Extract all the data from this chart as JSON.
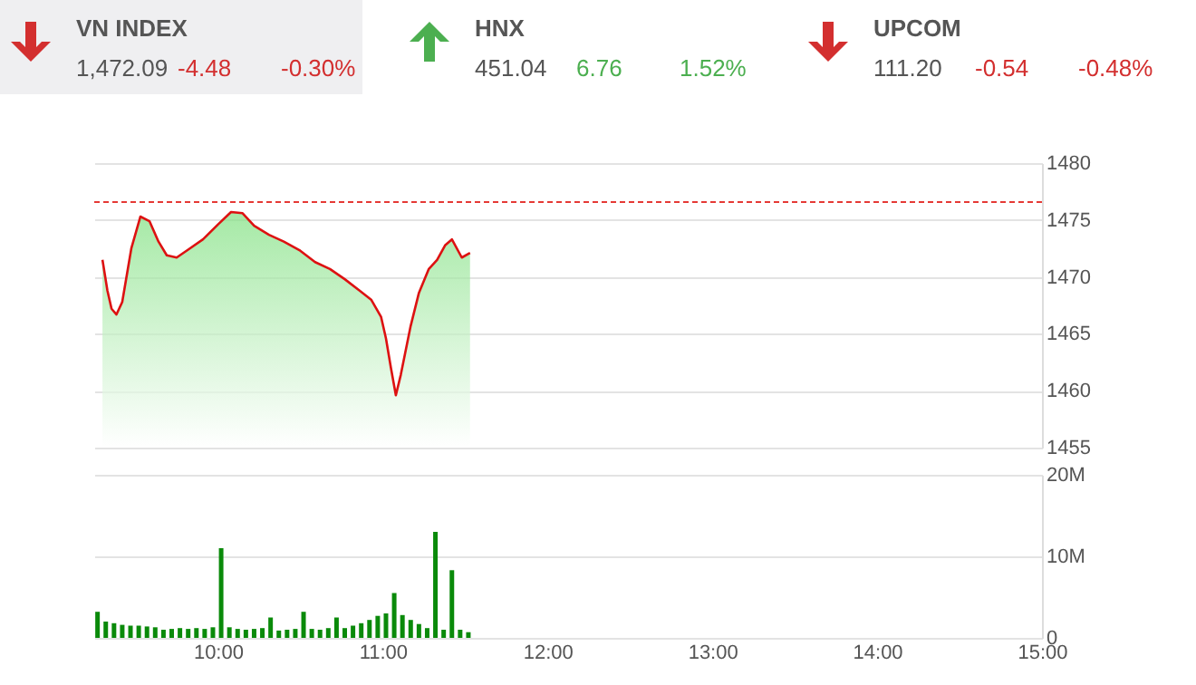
{
  "chart_data": [
    {
      "type": "other",
      "title": "VN INDEX",
      "annotations": [
        "1,472.09",
        "-4.48",
        "-0.30%"
      ],
      "color": "#d32f2f"
    },
    {
      "type": "other",
      "title": "HNX",
      "annotations": [
        "451.04",
        "6.76",
        "1.52%"
      ],
      "color": "#4caf50"
    },
    {
      "type": "other",
      "title": "UPCOM",
      "annotations": [
        "111.20",
        "-0.54",
        "-0.48%"
      ],
      "color": "#d32f2f"
    },
    {
      "type": "area",
      "xlim": [
        9.25,
        15
      ],
      "ylim": [
        1455,
        1480
      ],
      "yticks": [
        1455,
        1460,
        1465,
        1470,
        1475,
        1480
      ],
      "tick_labels": "y",
      "grid": "y",
      "ref_lines": [
        {
          "axis": "y",
          "value": 1476.57,
          "color": "#e53935",
          "line_style": "dashed"
        }
      ],
      "x": [
        9.3,
        9.33,
        9.355,
        9.385,
        9.42,
        9.475,
        9.53,
        9.585,
        9.64,
        9.69,
        9.75,
        9.82,
        9.91,
        10.0,
        10.08,
        10.15,
        10.22,
        10.31,
        10.4,
        10.5,
        10.59,
        10.68,
        10.77,
        10.86,
        10.93,
        10.99,
        11.02,
        11.05,
        11.08,
        11.11,
        11.17,
        11.22,
        11.28,
        11.33,
        11.38,
        11.42,
        11.48,
        11.53
      ],
      "series": [
        {
          "color": "#dd1111",
          "values": [
            1471.5,
            1468.8,
            1467.2,
            1466.7,
            1467.8,
            1472.5,
            1475.3,
            1474.9,
            1473.1,
            1471.9,
            1471.7,
            1472.4,
            1473.3,
            1474.6,
            1475.7,
            1475.6,
            1474.5,
            1473.7,
            1473.1,
            1472.3,
            1471.3,
            1470.7,
            1469.8,
            1468.8,
            1468.0,
            1466.5,
            1464.6,
            1462.0,
            1459.6,
            1461.4,
            1465.7,
            1468.6,
            1470.7,
            1471.5,
            1472.8,
            1473.3,
            1471.7,
            1472.1
          ]
        }
      ]
    },
    {
      "type": "bar",
      "xlim": [
        9.25,
        15
      ],
      "xticks": [
        {
          "value": 10,
          "label": "10:00"
        },
        {
          "value": 11,
          "label": "11:00"
        },
        {
          "value": 12,
          "label": "12:00"
        },
        {
          "value": 13,
          "label": "13:00"
        },
        {
          "value": 14,
          "label": "14:00"
        },
        {
          "value": 15,
          "label": "15:00"
        }
      ],
      "ylim": [
        0,
        20
      ],
      "yticks": [
        0,
        {
          "value": 10,
          "label": "10M"
        },
        {
          "value": 20,
          "label": "20M"
        }
      ],
      "grid": "y",
      "x": [
        9.27,
        9.32,
        9.37,
        9.42,
        9.47,
        9.52,
        9.57,
        9.62,
        9.67,
        9.72,
        9.77,
        9.82,
        9.87,
        9.92,
        9.97,
        10.02,
        10.07,
        10.12,
        10.17,
        10.22,
        10.27,
        10.32,
        10.37,
        10.42,
        10.47,
        10.52,
        10.57,
        10.62,
        10.67,
        10.72,
        10.77,
        10.82,
        10.87,
        10.92,
        10.97,
        11.02,
        11.07,
        11.12,
        11.17,
        11.22,
        11.27,
        11.32,
        11.37,
        11.42,
        11.47,
        11.52
      ],
      "series": [
        {
          "color": "#0a8a0a",
          "values": [
            3.2,
            2.0,
            1.8,
            1.6,
            1.5,
            1.5,
            1.4,
            1.3,
            1.0,
            1.1,
            1.2,
            1.1,
            1.2,
            1.1,
            1.3,
            11.0,
            1.3,
            1.1,
            1.0,
            1.1,
            1.2,
            2.5,
            0.9,
            1.0,
            1.1,
            3.2,
            1.1,
            1.0,
            1.2,
            2.5,
            1.2,
            1.5,
            1.8,
            2.2,
            2.7,
            3.0,
            5.5,
            2.8,
            2.2,
            1.7,
            1.2,
            13.0,
            1.0,
            8.3,
            1.0,
            0.7
          ]
        }
      ]
    }
  ]
}
